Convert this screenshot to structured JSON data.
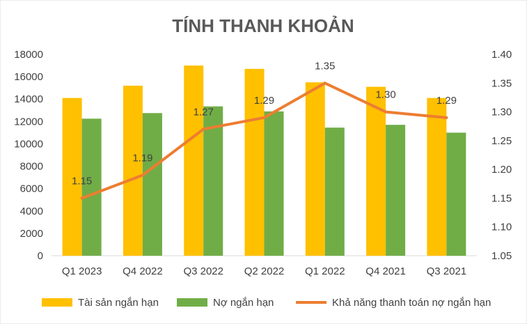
{
  "chart_data": {
    "type": "bar",
    "title": "TÍNH THANH KHOẢN",
    "categories": [
      "Q1 2023",
      "Q4 2022",
      "Q3 2022",
      "Q2 2022",
      "Q1 2022",
      "Q4 2021",
      "Q3 2021"
    ],
    "series": [
      {
        "name": "Tài sản ngắn hạn",
        "type": "bar",
        "axis": "left",
        "color": "#FFC000",
        "values": [
          14100,
          15200,
          17000,
          16700,
          15500,
          15100,
          14100
        ]
      },
      {
        "name": "Nợ ngắn hạn",
        "type": "bar",
        "axis": "left",
        "color": "#70AD47",
        "values": [
          12250,
          12750,
          13350,
          12900,
          11450,
          11700,
          11000
        ]
      },
      {
        "name": "Khả năng thanh toán nợ ngắn hạn",
        "type": "line",
        "axis": "right",
        "color": "#ED7D31",
        "values": [
          1.15,
          1.19,
          1.27,
          1.29,
          1.35,
          1.3,
          1.29
        ],
        "labels": [
          "1.15",
          "1.19",
          "1.27",
          "1.29",
          "1.35",
          "1.30",
          "1.29"
        ]
      }
    ],
    "y_left": {
      "min": 0,
      "max": 18000,
      "step": 2000,
      "ticks": [
        "0",
        "2000",
        "4000",
        "6000",
        "8000",
        "10000",
        "12000",
        "14000",
        "16000",
        "18000"
      ]
    },
    "y_right": {
      "min": 1.05,
      "max": 1.4,
      "step": 0.05,
      "ticks": [
        "1.05",
        "1.10",
        "1.15",
        "1.20",
        "1.25",
        "1.30",
        "1.35",
        "1.40"
      ]
    },
    "grid": false,
    "legend_position": "bottom"
  }
}
